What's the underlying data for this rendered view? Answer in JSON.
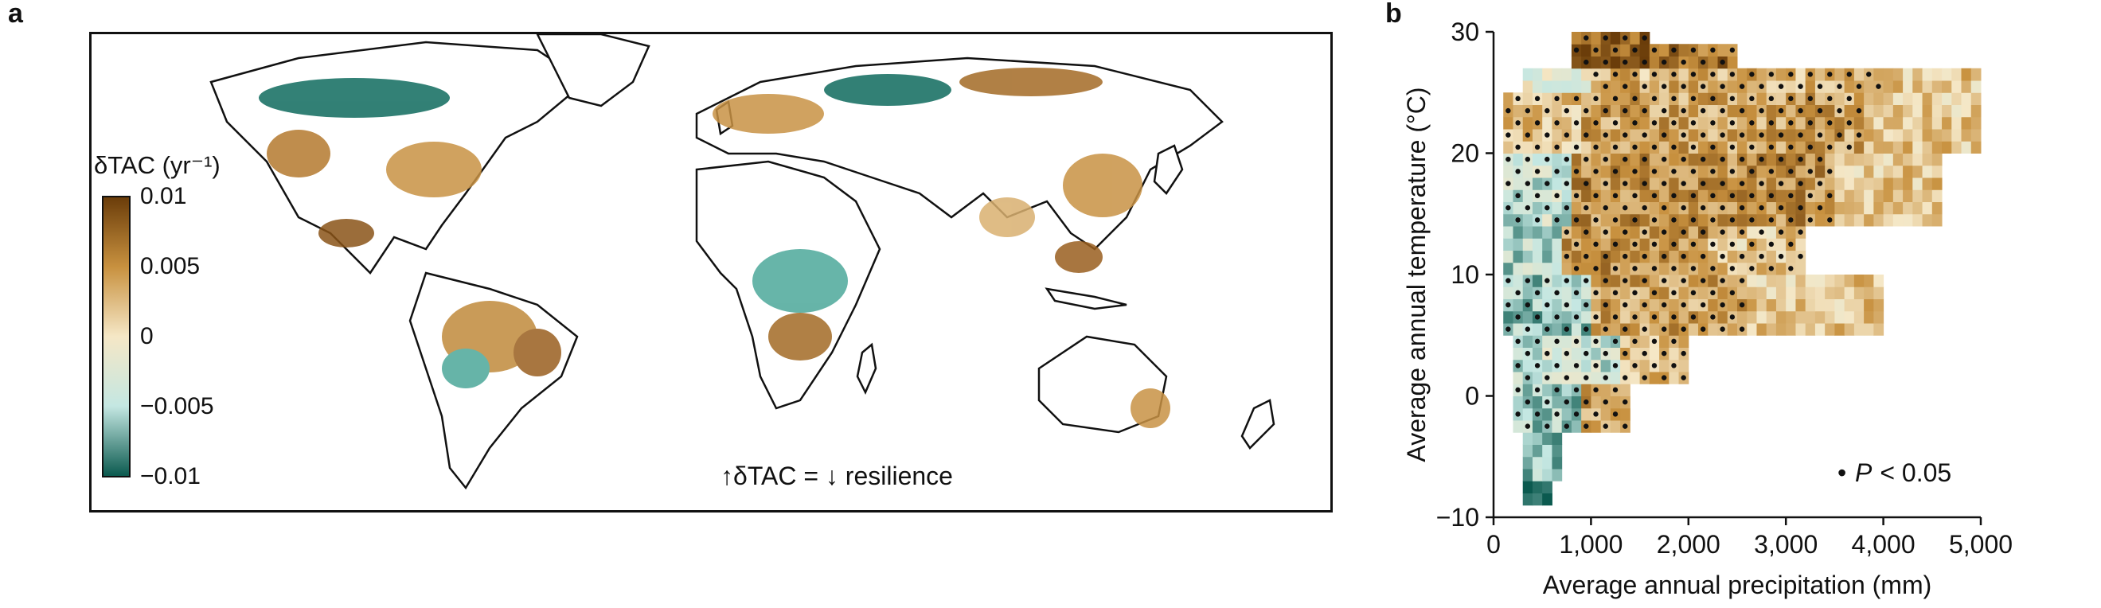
{
  "panels": {
    "a": "a",
    "b": "b"
  },
  "map": {
    "colorbar_title": "δTAC (yr⁻¹)",
    "colorbar_ticks": [
      "0.01",
      "0.005",
      "0",
      "−0.005",
      "−0.01"
    ],
    "colorbar_values": [
      0.01,
      0.005,
      0,
      -0.005,
      -0.01
    ],
    "colorbar_colors": [
      "#6b3d0a",
      "#c8913f",
      "#f5e7c6",
      "#c4e7e2",
      "#0b5a4f"
    ],
    "note_up_arrow": "↑",
    "note_left": "δTAC =",
    "note_down_arrow": "↓",
    "note_right": "resilience"
  },
  "chart_data": {
    "type": "heatmap",
    "xlabel": "Average annual precipitation (mm)",
    "ylabel": "Average annual temperature (°C)",
    "xlim": [
      0,
      5000
    ],
    "ylim": [
      -10,
      30
    ],
    "x_ticks": [
      0,
      1000,
      2000,
      3000,
      4000,
      5000
    ],
    "x_tick_labels": [
      "0",
      "1,000",
      "2,000",
      "3,000",
      "4,000",
      "5,000"
    ],
    "y_ticks": [
      -10,
      0,
      10,
      20,
      30
    ],
    "y_tick_labels": [
      "−10",
      "0",
      "10",
      "20",
      "30"
    ],
    "bin_width_mm": 100,
    "bin_height_c": 1,
    "legend": {
      "label": "P < 0.05",
      "placement": "bottom-right"
    },
    "legend_dot": "•",
    "legend_p": "P",
    "legend_rest": "< 0.05",
    "cmap_range": [
      -0.01,
      0.01
    ],
    "regions": [
      {
        "t_min": -9,
        "t_max": -7,
        "p_min": 300,
        "p_max": 600,
        "value": -0.009,
        "significant": false
      },
      {
        "t_min": -7,
        "t_max": -3,
        "p_min": 300,
        "p_max": 700,
        "value": -0.006,
        "significant": false
      },
      {
        "t_min": -3,
        "t_max": 1,
        "p_min": 200,
        "p_max": 900,
        "value": -0.006,
        "significant": true
      },
      {
        "t_min": -3,
        "t_max": 1,
        "p_min": 900,
        "p_max": 1400,
        "value": 0.004,
        "significant": true
      },
      {
        "t_min": 1,
        "t_max": 5,
        "p_min": 200,
        "p_max": 1300,
        "value": -0.004,
        "significant": true
      },
      {
        "t_min": 1,
        "t_max": 5,
        "p_min": 1300,
        "p_max": 2000,
        "value": 0.003,
        "significant": true
      },
      {
        "t_min": 5,
        "t_max": 10,
        "p_min": 100,
        "p_max": 1000,
        "value": -0.006,
        "significant": true
      },
      {
        "t_min": 5,
        "t_max": 10,
        "p_min": 1000,
        "p_max": 2600,
        "value": 0.004,
        "significant": true
      },
      {
        "t_min": 5,
        "t_max": 10,
        "p_min": 2600,
        "p_max": 4000,
        "value": 0.002,
        "significant": false
      },
      {
        "t_min": 10,
        "t_max": 14,
        "p_min": 100,
        "p_max": 700,
        "value": -0.005,
        "significant": false
      },
      {
        "t_min": 10,
        "t_max": 14,
        "p_min": 700,
        "p_max": 2200,
        "value": 0.005,
        "significant": true
      },
      {
        "t_min": 10,
        "t_max": 14,
        "p_min": 2200,
        "p_max": 3200,
        "value": 0.002,
        "significant": true
      },
      {
        "t_min": 14,
        "t_max": 20,
        "p_min": 100,
        "p_max": 800,
        "value": -0.004,
        "significant": true
      },
      {
        "t_min": 14,
        "t_max": 20,
        "p_min": 800,
        "p_max": 3500,
        "value": 0.005,
        "significant": true
      },
      {
        "t_min": 14,
        "t_max": 20,
        "p_min": 3500,
        "p_max": 4600,
        "value": 0.002,
        "significant": false
      },
      {
        "t_min": 20,
        "t_max": 25,
        "p_min": 100,
        "p_max": 900,
        "value": 0.002,
        "significant": true
      },
      {
        "t_min": 20,
        "t_max": 25,
        "p_min": 900,
        "p_max": 3800,
        "value": 0.004,
        "significant": true
      },
      {
        "t_min": 20,
        "t_max": 25,
        "p_min": 3800,
        "p_max": 5000,
        "value": 0.002,
        "significant": false
      },
      {
        "t_min": 25,
        "t_max": 27,
        "p_min": 300,
        "p_max": 1000,
        "value": -0.002,
        "significant": false
      },
      {
        "t_min": 25,
        "t_max": 27,
        "p_min": 1000,
        "p_max": 4000,
        "value": 0.003,
        "significant": true
      },
      {
        "t_min": 25,
        "t_max": 27,
        "p_min": 4000,
        "p_max": 5000,
        "value": 0.002,
        "significant": false
      },
      {
        "t_min": 27,
        "t_max": 30,
        "p_min": 800,
        "p_max": 1600,
        "value": 0.008,
        "significant": true
      },
      {
        "t_min": 27,
        "t_max": 29,
        "p_min": 1600,
        "p_max": 2500,
        "value": 0.007,
        "significant": true
      }
    ]
  }
}
